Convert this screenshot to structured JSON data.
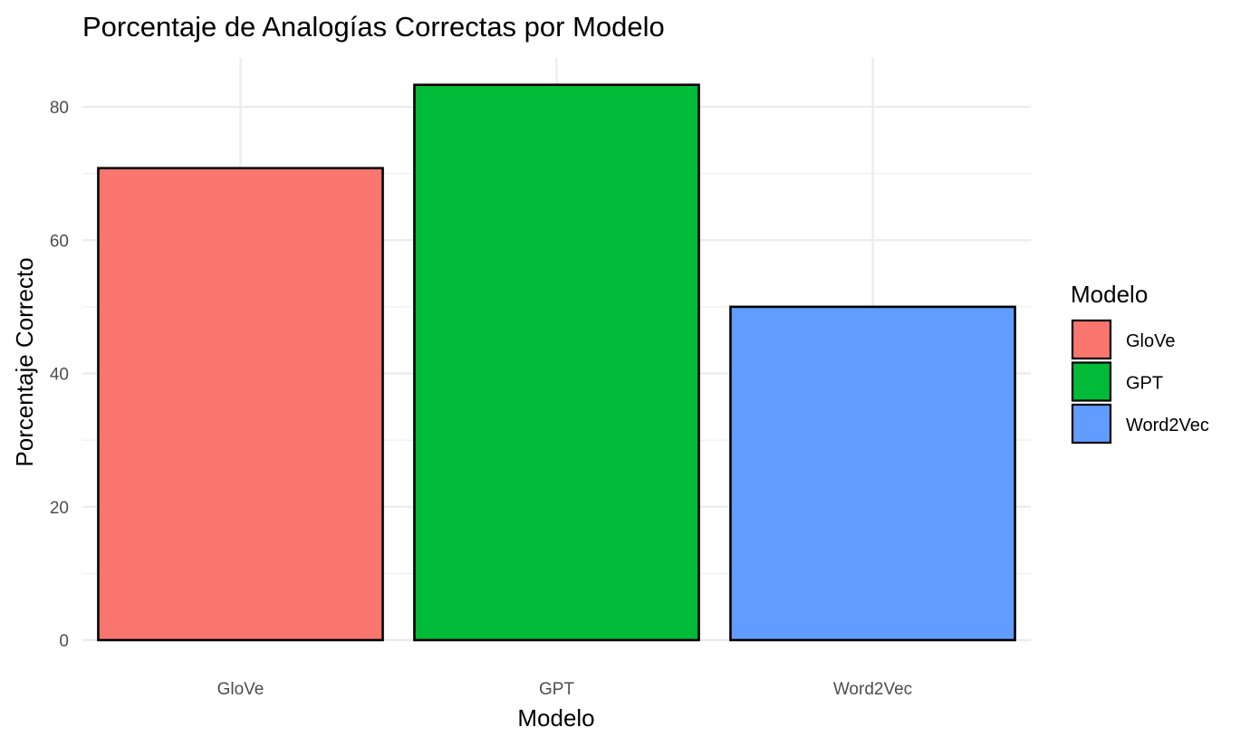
{
  "chart_data": {
    "type": "bar",
    "title": "Porcentaje de Analogías Correctas por Modelo",
    "xlabel": "Modelo",
    "ylabel": "Porcentaje Correcto",
    "categories": [
      "GloVe",
      "GPT",
      "Word2Vec"
    ],
    "values": [
      70.8,
      83.3,
      50.0
    ],
    "colors": [
      "#F8766D",
      "#00BA38",
      "#619CFF"
    ],
    "ylim": [
      0,
      86.5
    ],
    "y_ticks": [
      0,
      20,
      40,
      60,
      80
    ],
    "y_tick_labels": [
      "0",
      "20",
      "40",
      "60",
      "80"
    ],
    "grid": true,
    "legend": {
      "title": "Modelo",
      "position": "right",
      "entries": [
        "GloVe",
        "GPT",
        "Word2Vec"
      ]
    }
  }
}
